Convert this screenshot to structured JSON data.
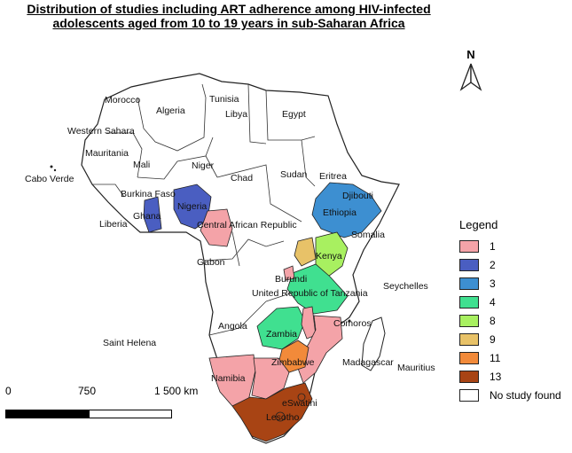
{
  "title": {
    "line1": "Distribution of  studies  including ART adherence among HIV-infected",
    "line2": "adolescents aged from 10 to 19 years in sub-Saharan Africa"
  },
  "north_arrow": {
    "label": "N",
    "icon": "north-arrow-icon"
  },
  "legend": {
    "title": "Legend",
    "items": [
      {
        "label": "1",
        "color": "#f4a3a8"
      },
      {
        "label": "2",
        "color": "#4a5ec1"
      },
      {
        "label": "3",
        "color": "#3d8fd1"
      },
      {
        "label": "4",
        "color": "#40e090"
      },
      {
        "label": "8",
        "color": "#a8f060"
      },
      {
        "label": "9",
        "color": "#e8c268"
      },
      {
        "label": "11",
        "color": "#f28a3a"
      },
      {
        "label": "13",
        "color": "#a84414"
      },
      {
        "label": "No study found",
        "color": "#ffffff"
      }
    ]
  },
  "scale_bar": {
    "labels": [
      "0",
      "750",
      "1 500 km"
    ]
  },
  "countries": {
    "tunisia": "Tunisia",
    "morocco": "Morocco",
    "algeria": "Algeria",
    "libya": "Libya",
    "egypt": "Egypt",
    "western_sahara": "Western Sahara",
    "mauritania": "Mauritania",
    "mali": "Mali",
    "niger": "Niger",
    "chad": "Chad",
    "sudan": "Sudan",
    "eritrea": "Eritrea",
    "djibouti": "Djibouti",
    "ethiopia": "Ethiopia",
    "somalia": "Somalia",
    "burkina_faso": "Burkina Faso",
    "ghana": "Ghana",
    "nigeria": "Nigeria",
    "car": "Central African Republic",
    "liberia": "Liberia",
    "gabon": "Gabon",
    "kenya": "Kenya",
    "burundi": "Burundi",
    "tanzania": "United Republic of Tanzania",
    "angola": "Angola",
    "zambia": "Zambia",
    "comoros": "Comoros",
    "zimbabwe": "Zimbabwe",
    "namibia": "Namibia",
    "madagascar": "Madagascar",
    "mauritius": "Mauritius",
    "eswatini": "eSwatini",
    "lesotho": "Lesotho",
    "cabo_verde": "Cabo Verde",
    "saint_helena": "Saint Helena",
    "seychelles": "Seychelles"
  }
}
